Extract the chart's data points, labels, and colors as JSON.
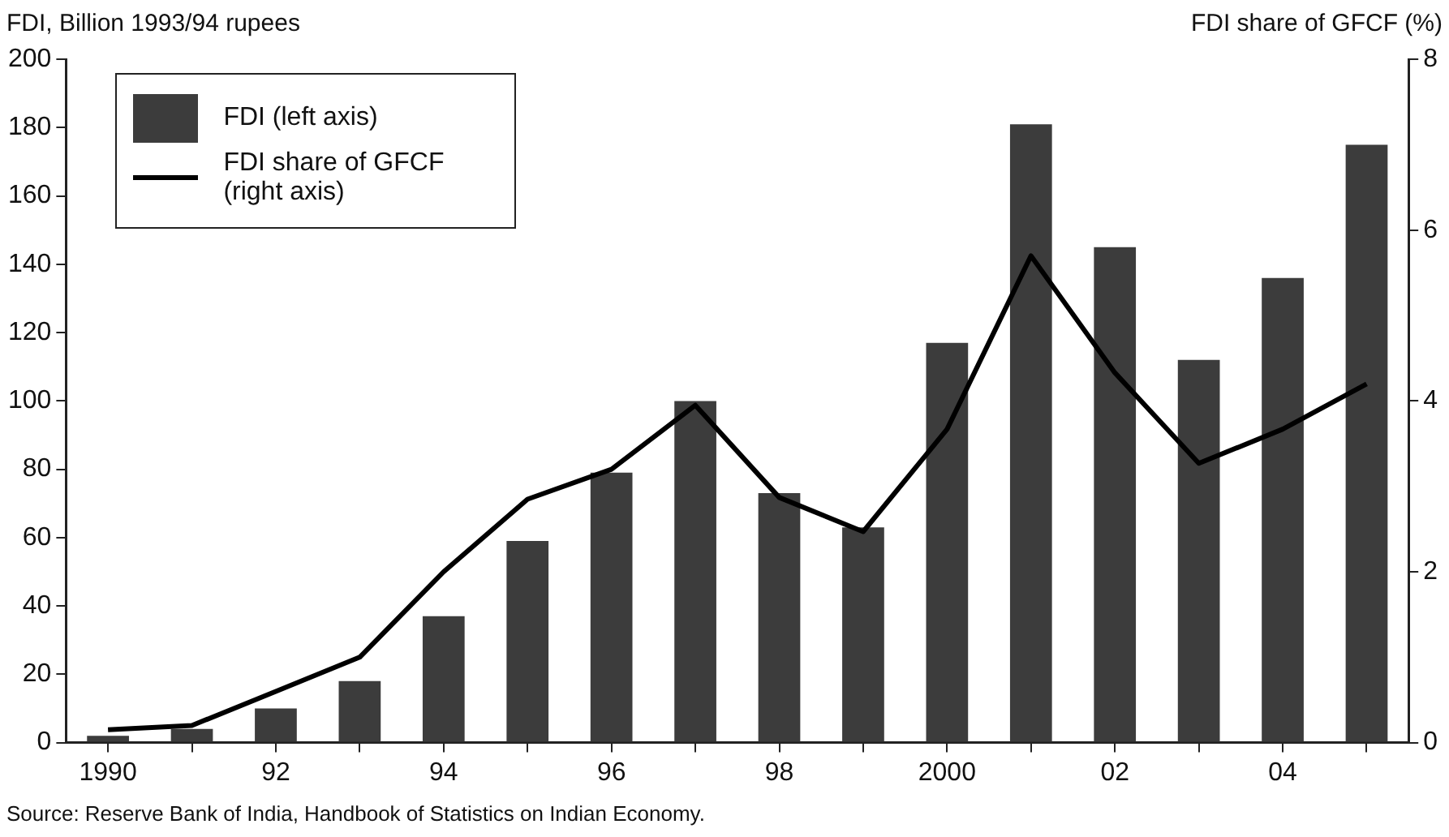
{
  "chart_data": {
    "type": "bar",
    "ylabel": "FDI, Billion 1993/94 rupees",
    "y2label": "FDI share of GFCF (%)",
    "categories": [
      "1990",
      null,
      "92",
      null,
      "94",
      null,
      "96",
      null,
      "98",
      null,
      "2000",
      null,
      "02",
      null,
      "04",
      null
    ],
    "series": [
      {
        "name": "FDI (left axis)",
        "color": "#3c3c3c",
        "values": [
          2,
          4,
          10,
          18,
          37,
          59,
          79,
          100,
          73,
          63,
          117,
          181,
          145,
          112,
          136,
          175
        ]
      },
      {
        "name": "FDI share of GFCF (right axis)",
        "type": "line",
        "axis": "y2",
        "color": "#000000",
        "values": [
          0.15,
          0.2,
          0.6,
          1.0,
          2.0,
          2.85,
          3.2,
          3.95,
          2.87,
          2.47,
          3.67,
          5.7,
          4.33,
          3.27,
          3.67,
          4.2
        ]
      }
    ],
    "ylim": [
      0,
      200
    ],
    "yticks": [
      0,
      20,
      40,
      60,
      80,
      100,
      120,
      140,
      160,
      180,
      200
    ],
    "y2lim": [
      0,
      8
    ],
    "y2ticks": [
      0,
      2,
      4,
      6,
      8
    ],
    "grid": false,
    "legend": "top left",
    "marker": "none",
    "line_style": "solid",
    "annotations": [
      "Source:  Reserve Bank of India, Handbook of Statistics on Indian Economy."
    ]
  }
}
